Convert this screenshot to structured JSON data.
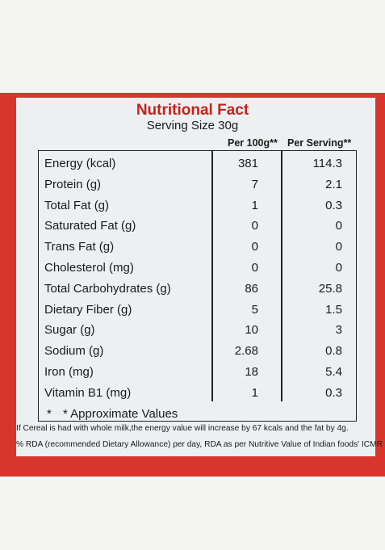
{
  "header": {
    "title": "Nutritional Fact",
    "serving_size": "Serving Size 30g"
  },
  "table": {
    "columns": [
      "Per 100g**",
      "Per Serving**"
    ],
    "rows": [
      [
        "Energy (kcal)",
        "381",
        "114.3"
      ],
      [
        "Protein (g)",
        "7",
        "2.1"
      ],
      [
        "Total Fat (g)",
        "1",
        "0.3"
      ],
      [
        "Saturated Fat (g)",
        "0",
        "0"
      ],
      [
        "Trans Fat (g)",
        "0",
        "0"
      ],
      [
        "Cholesterol (mg)",
        "0",
        "0"
      ],
      [
        "Total Carbohydrates (g)",
        "86",
        "25.8"
      ],
      [
        "Dietary Fiber (g)",
        "5",
        "1.5"
      ],
      [
        "Sugar (g)",
        "10",
        "3"
      ],
      [
        "Sodium (g)",
        "2.68",
        "0.8"
      ],
      [
        "Iron (mg)",
        "18",
        "5.4"
      ],
      [
        "Vitamin B1 (mg)",
        "1",
        "0.3"
      ]
    ],
    "note": [
      "*",
      "* Approximate Values"
    ]
  },
  "footnotes": [
    "If Cereal is had with whole milk,the energy value will increase by 67 kcals and the fat by 4g.",
    "% RDA (recommended Dietary Allowance) per day, RDA as per Nutritive Value of Indian foods' ICMR"
  ]
}
